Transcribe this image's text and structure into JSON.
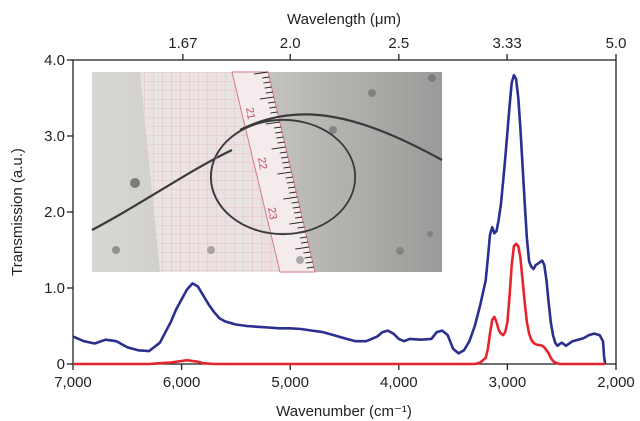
{
  "chart_data": {
    "type": "line",
    "xlabel": "Wavenumber (cm⁻¹)",
    "ylabel": "Transmission (a.u.)",
    "top_xlabel": "Wavelength (μm)",
    "xlim": [
      7000,
      2000
    ],
    "ylim": [
      0,
      4
    ],
    "x_ticks": [
      7000,
      6000,
      5000,
      4000,
      3000,
      2000
    ],
    "x_tick_labels": [
      "7,000",
      "6,000",
      "5,000",
      "4,000",
      "3,000",
      "2,000"
    ],
    "y_ticks": [
      0,
      1,
      2,
      3,
      4
    ],
    "y_tick_labels": [
      "0",
      "1.0",
      "2.0",
      "3.0",
      "4.0"
    ],
    "top_ticks_um": [
      1.67,
      2.0,
      2.5,
      3.33,
      5.0
    ],
    "top_tick_labels": [
      "1.67",
      "2.0",
      "2.5",
      "3.33",
      "5.0"
    ],
    "grid": false,
    "inset": "photo-of-coiled-fiber-on-ruler",
    "inset_ruler_labels": [
      "21",
      "22",
      "23"
    ],
    "series": [
      {
        "color": "#2b2f8f",
        "x": [
          7000,
          6900,
          6800,
          6700,
          6600,
          6500,
          6400,
          6300,
          6200,
          6100,
          6050,
          6000,
          5950,
          5900,
          5850,
          5800,
          5750,
          5700,
          5650,
          5600,
          5500,
          5400,
          5300,
          5200,
          5100,
          5000,
          4900,
          4800,
          4700,
          4600,
          4500,
          4400,
          4300,
          4200,
          4150,
          4100,
          4050,
          4000,
          3950,
          3900,
          3800,
          3700,
          3650,
          3600,
          3550,
          3500,
          3450,
          3400,
          3350,
          3300,
          3250,
          3200,
          3180,
          3160,
          3140,
          3120,
          3100,
          3080,
          3060,
          3040,
          3020,
          3000,
          2980,
          2960,
          2940,
          2920,
          2900,
          2880,
          2860,
          2840,
          2820,
          2800,
          2780,
          2760,
          2740,
          2720,
          2700,
          2680,
          2660,
          2640,
          2620,
          2600,
          2580,
          2560,
          2540,
          2520,
          2500,
          2480,
          2460,
          2440,
          2420,
          2400,
          2350,
          2300,
          2250,
          2200,
          2150,
          2120,
          2110,
          2100
        ],
        "y": [
          0.36,
          0.3,
          0.27,
          0.32,
          0.3,
          0.22,
          0.18,
          0.17,
          0.28,
          0.55,
          0.72,
          0.85,
          0.98,
          1.06,
          1.02,
          0.9,
          0.78,
          0.68,
          0.6,
          0.56,
          0.52,
          0.5,
          0.49,
          0.48,
          0.47,
          0.47,
          0.46,
          0.44,
          0.42,
          0.38,
          0.34,
          0.3,
          0.3,
          0.36,
          0.42,
          0.44,
          0.4,
          0.33,
          0.3,
          0.33,
          0.32,
          0.33,
          0.42,
          0.44,
          0.38,
          0.2,
          0.14,
          0.18,
          0.3,
          0.5,
          0.78,
          1.1,
          1.4,
          1.7,
          1.8,
          1.72,
          1.75,
          1.9,
          2.1,
          2.4,
          2.7,
          3.05,
          3.4,
          3.7,
          3.8,
          3.75,
          3.5,
          3.1,
          2.6,
          2.1,
          1.65,
          1.35,
          1.28,
          1.25,
          1.3,
          1.32,
          1.34,
          1.36,
          1.3,
          1.1,
          0.8,
          0.55,
          0.38,
          0.28,
          0.24,
          0.26,
          0.28,
          0.26,
          0.24,
          0.26,
          0.28,
          0.3,
          0.32,
          0.34,
          0.38,
          0.4,
          0.38,
          0.3,
          0.1,
          0.0
        ]
      },
      {
        "color": "#e4252d",
        "x": [
          7000,
          6600,
          6300,
          6200,
          6100,
          6000,
          5950,
          5900,
          5850,
          5800,
          5700,
          5000,
          4000,
          3500,
          3300,
          3250,
          3200,
          3180,
          3160,
          3140,
          3120,
          3100,
          3080,
          3060,
          3040,
          3020,
          3000,
          2980,
          2960,
          2940,
          2920,
          2900,
          2880,
          2860,
          2840,
          2820,
          2800,
          2780,
          2760,
          2740,
          2720,
          2700,
          2680,
          2660,
          2640,
          2620,
          2600,
          2580,
          2560,
          2540,
          2520,
          2500,
          2400,
          2200,
          2100
        ],
        "y": [
          0.0,
          0.0,
          0.0,
          0.01,
          0.02,
          0.04,
          0.05,
          0.04,
          0.03,
          0.01,
          0.0,
          0.0,
          0.0,
          0.0,
          0.0,
          0.02,
          0.08,
          0.2,
          0.4,
          0.58,
          0.62,
          0.55,
          0.45,
          0.4,
          0.38,
          0.42,
          0.55,
          0.9,
          1.3,
          1.55,
          1.58,
          1.55,
          1.4,
          1.1,
          0.8,
          0.55,
          0.4,
          0.32,
          0.28,
          0.26,
          0.25,
          0.25,
          0.24,
          0.22,
          0.18,
          0.14,
          0.08,
          0.04,
          0.02,
          0.01,
          0.0,
          0.0,
          0.0,
          0.0,
          0.0
        ]
      }
    ]
  }
}
